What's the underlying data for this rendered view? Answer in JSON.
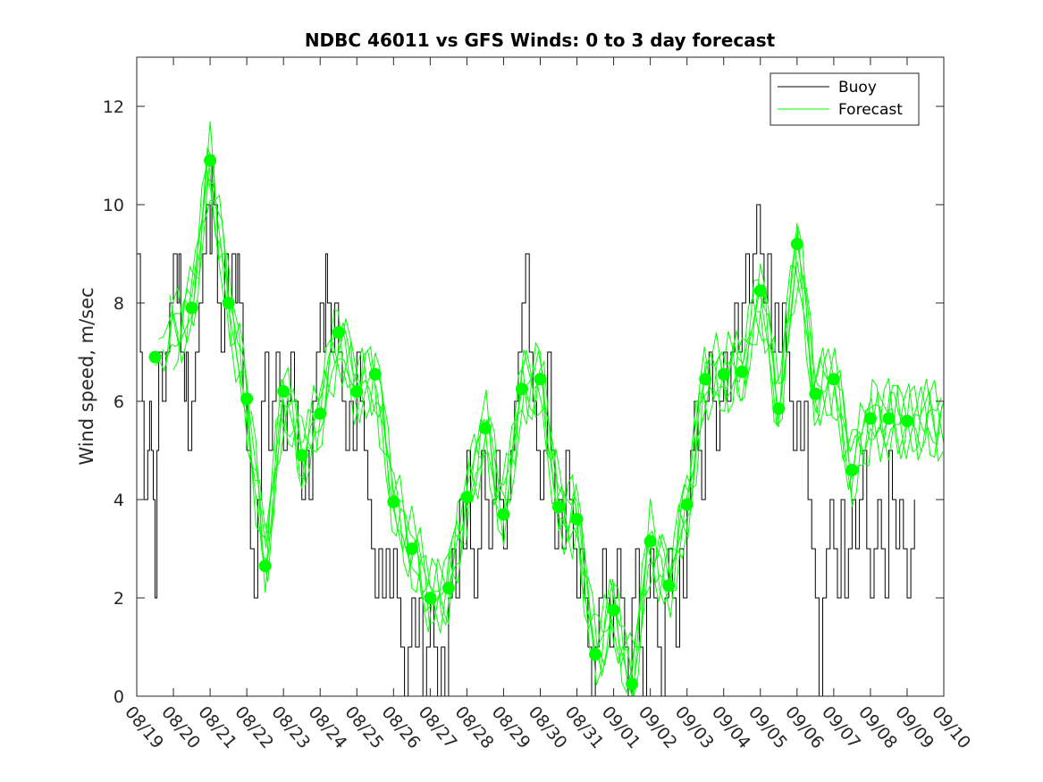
{
  "chart_data": {
    "type": "line",
    "title": "NDBC 46011 vs GFS Winds: 0 to 3 day forecast",
    "xlabel": "",
    "ylabel": "Wind speed, m/sec",
    "xlim": [
      0,
      22
    ],
    "ylim": [
      0,
      13
    ],
    "x_tick_labels": [
      "08/19",
      "08/20",
      "08/21",
      "08/22",
      "08/23",
      "08/24",
      "08/25",
      "08/26",
      "08/27",
      "08/28",
      "08/29",
      "08/30",
      "08/31",
      "09/01",
      "09/02",
      "09/03",
      "09/04",
      "09/05",
      "09/06",
      "09/07",
      "09/08",
      "09/09",
      "09/10"
    ],
    "y_ticks": [
      0,
      2,
      4,
      6,
      8,
      10,
      12
    ],
    "grid": false,
    "legend": {
      "position": "top-right",
      "entries": [
        "Buoy",
        "Forecast"
      ]
    },
    "colors": {
      "buoy": "#000000",
      "forecast": "#00ff00",
      "markers": "#00ff00",
      "axes": "#262626"
    },
    "series": [
      {
        "name": "Buoy",
        "x_unit": "days since 08/19",
        "points": [
          [
            0.0,
            9
          ],
          [
            0.1,
            7
          ],
          [
            0.15,
            6
          ],
          [
            0.2,
            4
          ],
          [
            0.3,
            5
          ],
          [
            0.35,
            6
          ],
          [
            0.4,
            5
          ],
          [
            0.45,
            4
          ],
          [
            0.5,
            2
          ],
          [
            0.55,
            5
          ],
          [
            0.6,
            7
          ],
          [
            0.7,
            6
          ],
          [
            0.8,
            7
          ],
          [
            0.9,
            8
          ],
          [
            1.0,
            9
          ],
          [
            1.1,
            8
          ],
          [
            1.15,
            9
          ],
          [
            1.2,
            7
          ],
          [
            1.3,
            6
          ],
          [
            1.35,
            7
          ],
          [
            1.4,
            5
          ],
          [
            1.5,
            6
          ],
          [
            1.6,
            7
          ],
          [
            1.7,
            8
          ],
          [
            1.8,
            9
          ],
          [
            1.9,
            10
          ],
          [
            2.0,
            9
          ],
          [
            2.05,
            11
          ],
          [
            2.1,
            10
          ],
          [
            2.2,
            8
          ],
          [
            2.3,
            7
          ],
          [
            2.4,
            9
          ],
          [
            2.5,
            8
          ],
          [
            2.6,
            9
          ],
          [
            2.7,
            8
          ],
          [
            2.75,
            9
          ],
          [
            2.8,
            8
          ],
          [
            2.9,
            6
          ],
          [
            3.0,
            5
          ],
          [
            3.1,
            3
          ],
          [
            3.2,
            2
          ],
          [
            3.3,
            4
          ],
          [
            3.4,
            6
          ],
          [
            3.5,
            7
          ],
          [
            3.6,
            5
          ],
          [
            3.7,
            6
          ],
          [
            3.8,
            7
          ],
          [
            3.9,
            6
          ],
          [
            4.0,
            5
          ],
          [
            4.1,
            6
          ],
          [
            4.2,
            7
          ],
          [
            4.3,
            6
          ],
          [
            4.4,
            5
          ],
          [
            4.5,
            4
          ],
          [
            4.6,
            5
          ],
          [
            4.7,
            4
          ],
          [
            4.8,
            6
          ],
          [
            4.9,
            7
          ],
          [
            5.0,
            8
          ],
          [
            5.1,
            7
          ],
          [
            5.15,
            9
          ],
          [
            5.2,
            8
          ],
          [
            5.3,
            7
          ],
          [
            5.4,
            8
          ],
          [
            5.5,
            7
          ],
          [
            5.6,
            6
          ],
          [
            5.7,
            5
          ],
          [
            5.8,
            6
          ],
          [
            5.9,
            5
          ],
          [
            6.0,
            7
          ],
          [
            6.1,
            6
          ],
          [
            6.2,
            5
          ],
          [
            6.3,
            4
          ],
          [
            6.4,
            3
          ],
          [
            6.5,
            2
          ],
          [
            6.6,
            3
          ],
          [
            6.7,
            2
          ],
          [
            6.8,
            3
          ],
          [
            6.9,
            2
          ],
          [
            7.0,
            3
          ],
          [
            7.1,
            2
          ],
          [
            7.2,
            1
          ],
          [
            7.3,
            0
          ],
          [
            7.4,
            1
          ],
          [
            7.5,
            2
          ],
          [
            7.6,
            1
          ],
          [
            7.7,
            2
          ],
          [
            7.8,
            0
          ],
          [
            7.9,
            1
          ],
          [
            8.0,
            2
          ],
          [
            8.1,
            1
          ],
          [
            8.2,
            0
          ],
          [
            8.3,
            1
          ],
          [
            8.4,
            0
          ],
          [
            8.5,
            2
          ],
          [
            8.6,
            3
          ],
          [
            8.7,
            2
          ],
          [
            8.8,
            4
          ],
          [
            8.9,
            3
          ],
          [
            9.0,
            5
          ],
          [
            9.1,
            3
          ],
          [
            9.2,
            2
          ],
          [
            9.3,
            3
          ],
          [
            9.4,
            5
          ],
          [
            9.5,
            4
          ],
          [
            9.6,
            3
          ],
          [
            9.7,
            4
          ],
          [
            9.8,
            5
          ],
          [
            9.9,
            4
          ],
          [
            10.0,
            3
          ],
          [
            10.1,
            4
          ],
          [
            10.2,
            5
          ],
          [
            10.3,
            6
          ],
          [
            10.4,
            7
          ],
          [
            10.5,
            8
          ],
          [
            10.6,
            9
          ],
          [
            10.7,
            7
          ],
          [
            10.8,
            6
          ],
          [
            10.9,
            5
          ],
          [
            11.0,
            4
          ],
          [
            11.1,
            5
          ],
          [
            11.2,
            7
          ],
          [
            11.3,
            5
          ],
          [
            11.4,
            3
          ],
          [
            11.5,
            4
          ],
          [
            11.6,
            3
          ],
          [
            11.7,
            5
          ],
          [
            11.8,
            4
          ],
          [
            11.9,
            3
          ],
          [
            12.0,
            2
          ],
          [
            12.1,
            3
          ],
          [
            12.2,
            2
          ],
          [
            12.3,
            1
          ],
          [
            12.4,
            0
          ],
          [
            12.5,
            1
          ],
          [
            12.6,
            2
          ],
          [
            12.7,
            3
          ],
          [
            12.8,
            2
          ],
          [
            12.9,
            1
          ],
          [
            13.0,
            2
          ],
          [
            13.1,
            3
          ],
          [
            13.2,
            2
          ],
          [
            13.3,
            1
          ],
          [
            13.4,
            0
          ],
          [
            13.5,
            2
          ],
          [
            13.6,
            3
          ],
          [
            13.7,
            1
          ],
          [
            13.8,
            0
          ],
          [
            13.9,
            2
          ],
          [
            14.0,
            3
          ],
          [
            14.1,
            2
          ],
          [
            14.2,
            1
          ],
          [
            14.3,
            0
          ],
          [
            14.4,
            2
          ],
          [
            14.5,
            3
          ],
          [
            14.6,
            2
          ],
          [
            14.7,
            1
          ],
          [
            14.8,
            3
          ],
          [
            14.9,
            2
          ],
          [
            15.0,
            4
          ],
          [
            15.1,
            5
          ],
          [
            15.2,
            6
          ],
          [
            15.3,
            5
          ],
          [
            15.4,
            4
          ],
          [
            15.5,
            6
          ],
          [
            15.6,
            7
          ],
          [
            15.7,
            6
          ],
          [
            15.8,
            5
          ],
          [
            15.9,
            6
          ],
          [
            16.0,
            7
          ],
          [
            16.1,
            6
          ],
          [
            16.2,
            7
          ],
          [
            16.3,
            8
          ],
          [
            16.4,
            7
          ],
          [
            16.5,
            8
          ],
          [
            16.6,
            9
          ],
          [
            16.7,
            8
          ],
          [
            16.8,
            9
          ],
          [
            16.9,
            10
          ],
          [
            17.0,
            9
          ],
          [
            17.1,
            8
          ],
          [
            17.2,
            9
          ],
          [
            17.3,
            7
          ],
          [
            17.4,
            8
          ],
          [
            17.5,
            7
          ],
          [
            17.6,
            8
          ],
          [
            17.7,
            7
          ],
          [
            17.8,
            6
          ],
          [
            17.9,
            5
          ],
          [
            18.0,
            6
          ],
          [
            18.1,
            5
          ],
          [
            18.2,
            6
          ],
          [
            18.3,
            4
          ],
          [
            18.4,
            3
          ],
          [
            18.5,
            2
          ],
          [
            18.6,
            0
          ],
          [
            18.7,
            2
          ],
          [
            18.8,
            3
          ],
          [
            18.9,
            4
          ],
          [
            19.0,
            3
          ],
          [
            19.1,
            2
          ],
          [
            19.2,
            4
          ],
          [
            19.3,
            2
          ],
          [
            19.4,
            3
          ],
          [
            19.5,
            4
          ],
          [
            19.6,
            3
          ],
          [
            19.7,
            4
          ],
          [
            19.8,
            5
          ],
          [
            19.9,
            3
          ],
          [
            20.0,
            2
          ],
          [
            20.1,
            3
          ],
          [
            20.2,
            4
          ],
          [
            20.3,
            3
          ],
          [
            20.4,
            2
          ],
          [
            20.5,
            5
          ],
          [
            20.6,
            4
          ],
          [
            20.7,
            3
          ],
          [
            20.8,
            4
          ],
          [
            20.9,
            3
          ],
          [
            21.0,
            2
          ],
          [
            21.1,
            3
          ],
          [
            21.2,
            4
          ]
        ]
      },
      {
        "name": "Forecast",
        "x_unit": "days since 08/19",
        "markers": [
          [
            0.5,
            6.9
          ],
          [
            1.5,
            7.9
          ],
          [
            2.0,
            10.9
          ],
          [
            2.5,
            8.0
          ],
          [
            3.0,
            6.05
          ],
          [
            3.5,
            2.65
          ],
          [
            4.0,
            6.2
          ],
          [
            4.5,
            4.9
          ],
          [
            5.0,
            5.75
          ],
          [
            5.5,
            7.4
          ],
          [
            6.0,
            6.2
          ],
          [
            6.5,
            6.55
          ],
          [
            7.0,
            3.95
          ],
          [
            7.5,
            3.0
          ],
          [
            8.0,
            2.0
          ],
          [
            8.5,
            2.2
          ],
          [
            9.0,
            4.05
          ],
          [
            9.5,
            5.45
          ],
          [
            10.0,
            3.7
          ],
          [
            10.5,
            6.25
          ],
          [
            11.0,
            6.45
          ],
          [
            11.5,
            3.85
          ],
          [
            12.0,
            3.6
          ],
          [
            12.5,
            0.85
          ],
          [
            13.0,
            1.75
          ],
          [
            13.5,
            0.25
          ],
          [
            14.0,
            3.15
          ],
          [
            14.5,
            2.25
          ],
          [
            15.0,
            3.9
          ],
          [
            15.5,
            6.45
          ],
          [
            16.0,
            6.55
          ],
          [
            16.5,
            6.6
          ],
          [
            17.0,
            8.25
          ],
          [
            17.5,
            5.85
          ],
          [
            18.0,
            9.2
          ],
          [
            18.5,
            6.15
          ],
          [
            19.0,
            6.45
          ],
          [
            19.5,
            4.6
          ],
          [
            20.0,
            5.65
          ],
          [
            20.5,
            5.65
          ],
          [
            21.0,
            5.6
          ]
        ]
      }
    ]
  }
}
